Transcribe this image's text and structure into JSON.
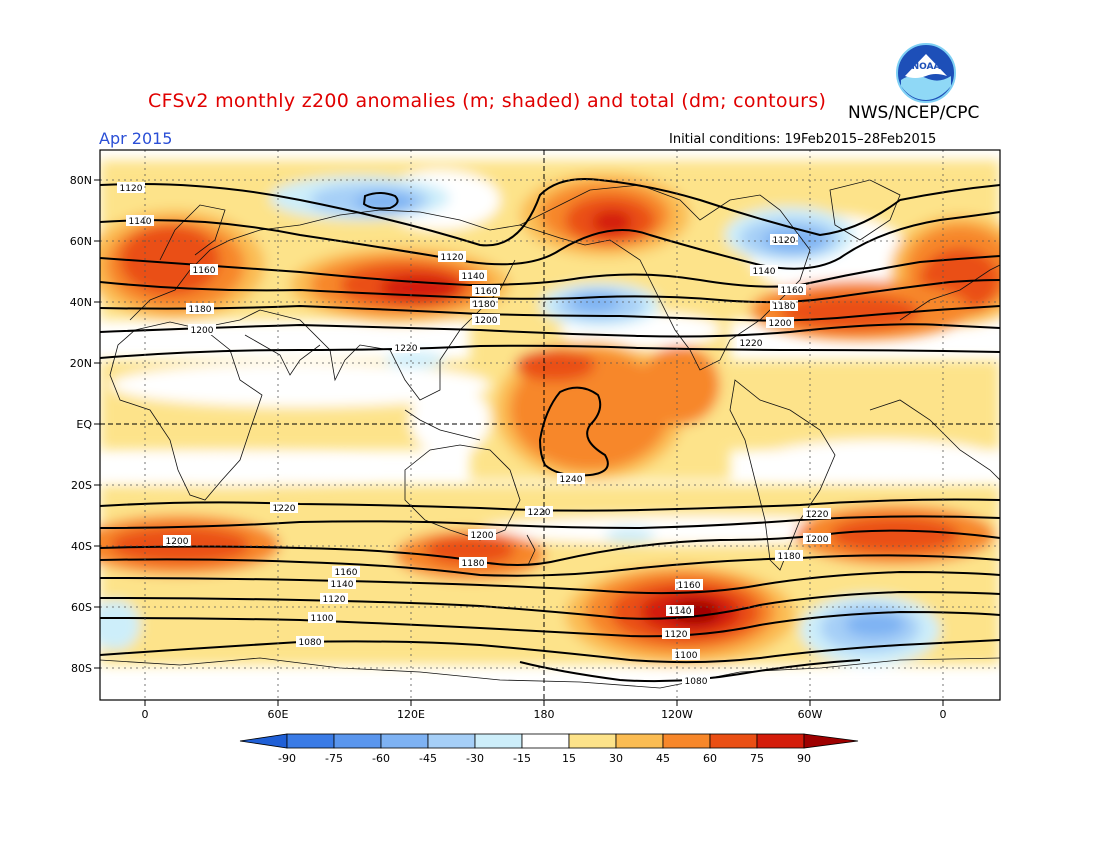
{
  "header": {
    "title": "CFSv2 monthly z200 anomalies (m; shaded) and total (dm; contours)",
    "agency": "NWS/NCEP/CPC",
    "month": "Apr 2015",
    "initial_conditions": "Initial conditions: 19Feb2015–28Feb2015"
  },
  "logo": {
    "text": "NOAA",
    "icon": "noaa-logo-icon"
  },
  "axes": {
    "lat_labels": [
      "80N",
      "60N",
      "40N",
      "20N",
      "EQ",
      "20S",
      "40S",
      "60S",
      "80S"
    ],
    "lon_labels": [
      "0",
      "60E",
      "120E",
      "180",
      "120W",
      "60W",
      "0"
    ]
  },
  "colorbar": {
    "labels": [
      "-90",
      "-75",
      "-60",
      "-45",
      "-30",
      "-15",
      "15",
      "30",
      "45",
      "60",
      "75",
      "90"
    ],
    "colors": [
      "#1f5fd6",
      "#3a7be6",
      "#5a96ee",
      "#7eb2f3",
      "#a6cff7",
      "#cdeefa",
      "#ffffff",
      "#fde38a",
      "#fbbc52",
      "#f7872a",
      "#ea4f14",
      "#d41c0a",
      "#9e0000"
    ]
  },
  "contour_labels": [
    "1120",
    "1140",
    "1160",
    "1180",
    "1200",
    "1220",
    "1240",
    "1100",
    "1080"
  ]
}
